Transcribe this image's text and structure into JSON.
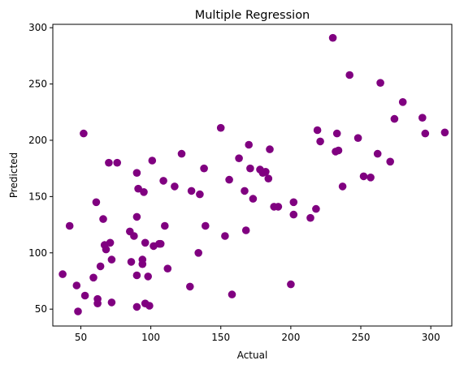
{
  "chart_data": {
    "type": "scatter",
    "title": "Multiple Regression",
    "xlabel": "Actual",
    "ylabel": "Predicted",
    "xlim": [
      30,
      315
    ],
    "ylim": [
      35,
      303
    ],
    "xticks": [
      50,
      100,
      150,
      200,
      250,
      300
    ],
    "yticks": [
      50,
      100,
      150,
      200,
      250,
      300
    ],
    "xtick_labels": [
      "50",
      "100",
      "150",
      "200",
      "250",
      "300"
    ],
    "ytick_labels": [
      "50",
      "100",
      "150",
      "200",
      "250",
      "300"
    ],
    "grid": false,
    "marker_color": "#800080",
    "points": [
      [
        37,
        81
      ],
      [
        42,
        124
      ],
      [
        47,
        71
      ],
      [
        48,
        48
      ],
      [
        52,
        206
      ],
      [
        53,
        62
      ],
      [
        59,
        78
      ],
      [
        61,
        145
      ],
      [
        62,
        55
      ],
      [
        62,
        59
      ],
      [
        64,
        88
      ],
      [
        66,
        130
      ],
      [
        67,
        107
      ],
      [
        68,
        103
      ],
      [
        70,
        180
      ],
      [
        71,
        109
      ],
      [
        72,
        94
      ],
      [
        72,
        56
      ],
      [
        76,
        180
      ],
      [
        85,
        119
      ],
      [
        86,
        92
      ],
      [
        88,
        115
      ],
      [
        90,
        171
      ],
      [
        90,
        80
      ],
      [
        90,
        132
      ],
      [
        90,
        52
      ],
      [
        91,
        157
      ],
      [
        94,
        94
      ],
      [
        94,
        90
      ],
      [
        95,
        154
      ],
      [
        96,
        109
      ],
      [
        96,
        55
      ],
      [
        98,
        79
      ],
      [
        99,
        53
      ],
      [
        101,
        182
      ],
      [
        102,
        106
      ],
      [
        106,
        108
      ],
      [
        107,
        108
      ],
      [
        109,
        164
      ],
      [
        110,
        124
      ],
      [
        112,
        86
      ],
      [
        117,
        159
      ],
      [
        122,
        188
      ],
      [
        128,
        70
      ],
      [
        129,
        155
      ],
      [
        134,
        100
      ],
      [
        135,
        152
      ],
      [
        138,
        175
      ],
      [
        139,
        124
      ],
      [
        150,
        211
      ],
      [
        153,
        115
      ],
      [
        156,
        165
      ],
      [
        158,
        63
      ],
      [
        163,
        184
      ],
      [
        167,
        155
      ],
      [
        168,
        120
      ],
      [
        170,
        196
      ],
      [
        171,
        175
      ],
      [
        173,
        148
      ],
      [
        178,
        174
      ],
      [
        180,
        171
      ],
      [
        182,
        172
      ],
      [
        184,
        166
      ],
      [
        185,
        192
      ],
      [
        188,
        141
      ],
      [
        191,
        141
      ],
      [
        200,
        72
      ],
      [
        202,
        145
      ],
      [
        202,
        134
      ],
      [
        214,
        131
      ],
      [
        218,
        139
      ],
      [
        219,
        209
      ],
      [
        221,
        199
      ],
      [
        230,
        291
      ],
      [
        232,
        190
      ],
      [
        233,
        206
      ],
      [
        234,
        191
      ],
      [
        237,
        159
      ],
      [
        242,
        258
      ],
      [
        248,
        202
      ],
      [
        252,
        168
      ],
      [
        257,
        167
      ],
      [
        262,
        188
      ],
      [
        264,
        251
      ],
      [
        271,
        181
      ],
      [
        274,
        219
      ],
      [
        280,
        234
      ],
      [
        294,
        220
      ],
      [
        296,
        206
      ],
      [
        310,
        207
      ]
    ]
  }
}
